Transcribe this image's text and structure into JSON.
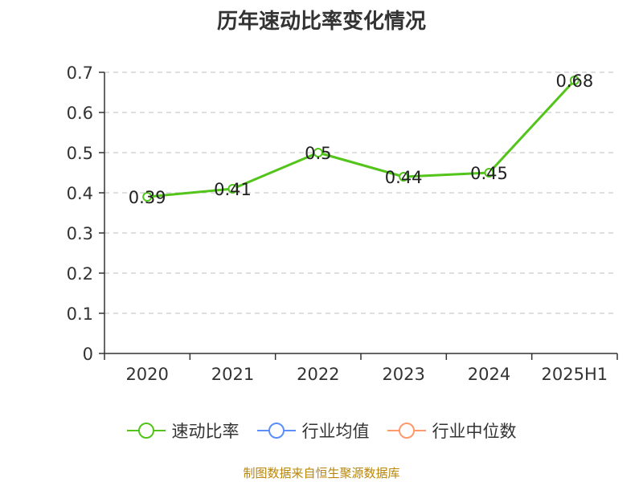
{
  "chart_data": {
    "type": "line",
    "title": "历年速动比率变化情况",
    "categories": [
      "2020",
      "2021",
      "2022",
      "2023",
      "2024",
      "2025H1"
    ],
    "series": [
      {
        "name": "速动比率",
        "values": [
          0.39,
          0.41,
          0.5,
          0.44,
          0.45,
          0.68
        ],
        "color": "#52c41a"
      }
    ],
    "data_labels": [
      "0.39",
      "0.41",
      "0.5",
      "0.44",
      "0.45",
      "0.68"
    ],
    "ylim": [
      0,
      0.7
    ],
    "yticks": [
      0,
      0.1,
      0.2,
      0.3,
      0.4,
      0.5,
      0.6,
      0.7
    ],
    "ytick_labels": [
      "0",
      "0.1",
      "0.2",
      "0.3",
      "0.4",
      "0.5",
      "0.6",
      "0.7"
    ],
    "grid": true,
    "legend_position": "bottom",
    "legend": [
      {
        "label": "速动比率",
        "color": "#52c41a"
      },
      {
        "label": "行业均值",
        "color": "#5b8ff9"
      },
      {
        "label": "行业中位数",
        "color": "#ff9a6c"
      }
    ]
  },
  "footer": {
    "source": "制图数据来自恒生聚源数据库"
  }
}
